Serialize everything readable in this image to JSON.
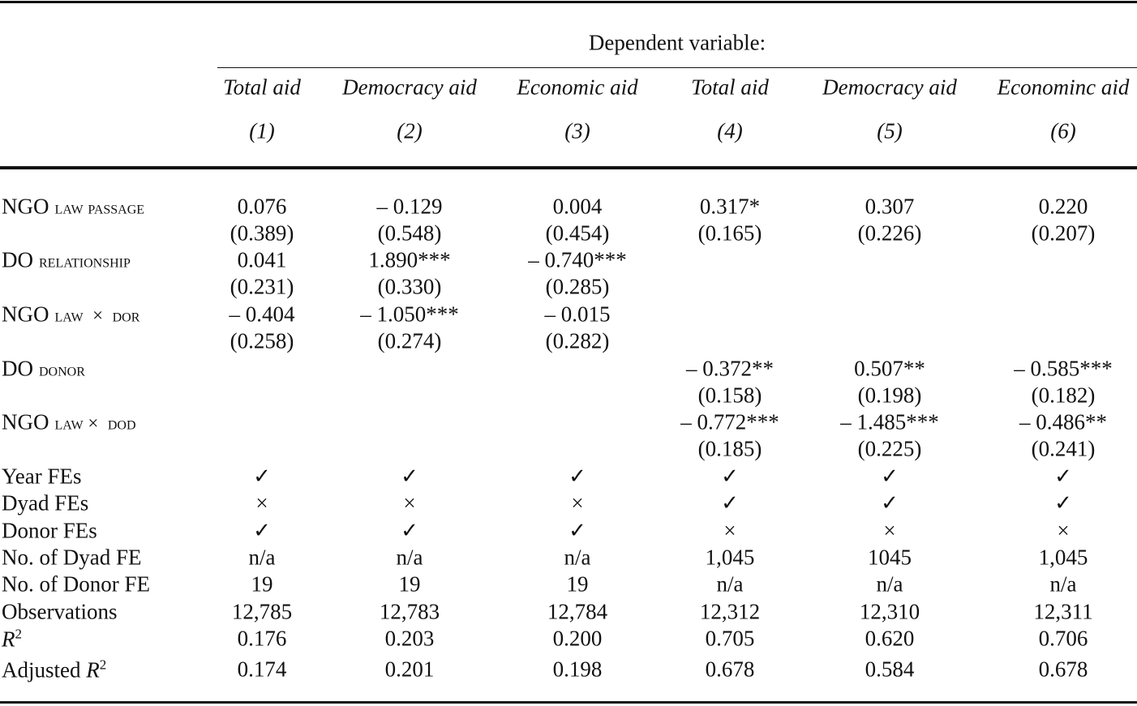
{
  "header": {
    "dependent_variable": "Dependent variable:",
    "columns": [
      {
        "name": "Total aid",
        "number": "(1)"
      },
      {
        "name": "Democracy aid",
        "number": "(2)"
      },
      {
        "name": "Economic aid",
        "number": "(3)"
      },
      {
        "name": "Total aid",
        "number": "(4)"
      },
      {
        "name": "Democracy aid",
        "number": "(5)"
      },
      {
        "name": "Econominc aid",
        "number": "(6)"
      }
    ]
  },
  "table": {
    "coefficient_rows": [
      {
        "label": [
          {
            "text": "NGO"
          },
          {
            "text": "law passage",
            "small_caps": true
          }
        ],
        "values": [
          "0.076",
          "– 0.129",
          "0.004",
          "0.317*",
          "0.307",
          "0.220"
        ],
        "errors": [
          "(0.389)",
          "(0.548)",
          "(0.454)",
          "(0.165)",
          "(0.226)",
          "(0.207)"
        ]
      },
      {
        "label": [
          {
            "text": "DO"
          },
          {
            "text": "relationship",
            "small_caps": true
          }
        ],
        "values": [
          "0.041",
          "1.890***",
          "– 0.740***",
          null,
          null,
          null
        ],
        "errors": [
          "(0.231)",
          "(0.330)",
          "(0.285)",
          null,
          null,
          null
        ]
      },
      {
        "label": [
          {
            "text": "NGO"
          },
          {
            "text": "law  ×  dor",
            "small_caps": true
          }
        ],
        "values": [
          "– 0.404",
          "– 1.050***",
          "– 0.015",
          null,
          null,
          null
        ],
        "errors": [
          "(0.258)",
          "(0.274)",
          "(0.282)",
          null,
          null,
          null
        ]
      },
      {
        "label": [
          {
            "text": "DO"
          },
          {
            "text": "donor",
            "small_caps": true
          }
        ],
        "values": [
          null,
          null,
          null,
          "– 0.372**",
          "0.507**",
          "– 0.585***"
        ],
        "errors": [
          null,
          null,
          null,
          "(0.158)",
          "(0.198)",
          "(0.182)"
        ]
      },
      {
        "label": [
          {
            "text": "NGO"
          },
          {
            "text": "law ×  dod",
            "small_caps": true
          }
        ],
        "values": [
          null,
          null,
          null,
          "– 0.772***",
          "– 1.485***",
          "– 0.486**"
        ],
        "errors": [
          null,
          null,
          null,
          "(0.185)",
          "(0.225)",
          "(0.241)"
        ]
      }
    ],
    "summary_rows": [
      {
        "label": [
          {
            "text": "Year FEs"
          }
        ],
        "values": [
          "✓",
          "✓",
          "✓",
          "✓",
          "✓",
          "✓"
        ]
      },
      {
        "label": [
          {
            "text": "Dyad FEs"
          }
        ],
        "values": [
          "×",
          "×",
          "×",
          "✓",
          "✓",
          "✓"
        ]
      },
      {
        "label": [
          {
            "text": "Donor FEs"
          }
        ],
        "values": [
          "✓",
          "✓",
          "✓",
          "×",
          "×",
          "×"
        ]
      },
      {
        "label": [
          {
            "text": "No. of Dyad FE"
          }
        ],
        "values": [
          "n/a",
          "n/a",
          "n/a",
          "1,045",
          "1045",
          "1,045"
        ]
      },
      {
        "label": [
          {
            "text": "No. of Donor FE"
          }
        ],
        "values": [
          "19",
          "19",
          "19",
          "n/a",
          "n/a",
          "n/a"
        ]
      },
      {
        "label": [
          {
            "text": "Observations"
          }
        ],
        "values": [
          "12,785",
          "12,783",
          "12,784",
          "12,312",
          "12,310",
          "12,311"
        ]
      },
      {
        "label": [
          {
            "text": "R",
            "italic": true
          },
          {
            "text": "2",
            "sup": true
          }
        ],
        "values": [
          "0.176",
          "0.203",
          "0.200",
          "0.705",
          "0.620",
          "0.706"
        ]
      },
      {
        "label": [
          {
            "text": "Adjusted "
          },
          {
            "text": "R",
            "italic": true
          },
          {
            "text": "2",
            "sup": true
          }
        ],
        "values": [
          "0.174",
          "0.201",
          "0.198",
          "0.678",
          "0.584",
          "0.678"
        ]
      }
    ]
  }
}
